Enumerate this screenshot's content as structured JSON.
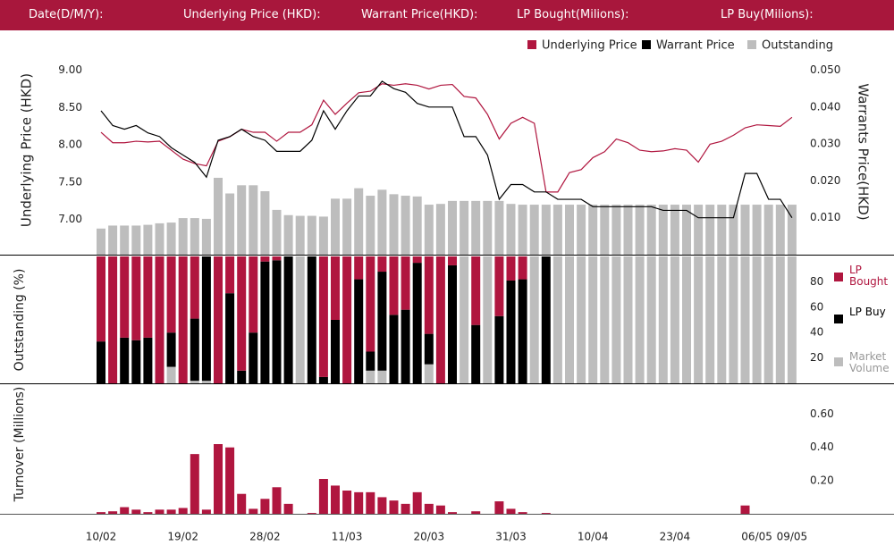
{
  "header": {
    "labels": [
      "Date(D/M/Y):",
      "Underlying Price (HKD):",
      "Warrant  Price(HKD):",
      "LP Bought(Milions):",
      "LP Buy(Milions):"
    ]
  },
  "chart_data": [
    {
      "type": "combo",
      "ylabel": "Underlying Price (HKD)",
      "y2label": "Warrants  Price(HKD)",
      "ylim": [
        6.53,
        9.2
      ],
      "yticks": [
        {
          "value": 7,
          "label": "7.00"
        },
        {
          "value": 7.5,
          "label": "7.50"
        },
        {
          "value": 8,
          "label": "8.00"
        },
        {
          "value": 8.5,
          "label": "8.50"
        },
        {
          "value": 9,
          "label": "9.00"
        }
      ],
      "y2lim": [
        0,
        0.054
      ],
      "y2ticks": [
        {
          "value": 0.01,
          "label": "0.010"
        },
        {
          "value": 0.02,
          "label": "0.020"
        },
        {
          "value": 0.03,
          "label": "0.030"
        },
        {
          "value": 0.04,
          "label": "0.040"
        },
        {
          "value": 0.05,
          "label": "0.050"
        }
      ],
      "series": [
        {
          "name": "Underlying Price",
          "color": "#b0163f",
          "type": "line",
          "values": [
            8.17,
            8.03,
            8.03,
            8.05,
            8.04,
            8.05,
            7.93,
            7.81,
            7.75,
            7.72,
            8.05,
            8.11,
            8.21,
            8.17,
            8.17,
            8.05,
            8.17,
            8.17,
            8.27,
            8.6,
            8.41,
            8.56,
            8.7,
            8.72,
            8.82,
            8.8,
            8.82,
            8.8,
            8.75,
            8.8,
            8.81,
            8.65,
            8.63,
            8.41,
            8.08,
            8.29,
            8.37,
            8.29,
            7.37,
            7.37,
            7.63,
            7.67,
            7.83,
            7.91,
            8.08,
            8.03,
            7.93,
            7.91,
            7.92,
            7.95,
            7.93,
            7.77,
            8.01,
            8.05,
            8.13,
            8.23,
            8.27,
            8.26,
            8.25,
            8.37
          ]
        },
        {
          "name": "Warrant  Price",
          "color": "#000000",
          "type": "line",
          "axis": "y2",
          "values": [
            0.039,
            0.035,
            0.034,
            0.035,
            0.033,
            0.032,
            0.029,
            0.027,
            0.025,
            0.021,
            0.031,
            0.032,
            0.034,
            0.032,
            0.031,
            0.028,
            0.028,
            0.028,
            0.031,
            0.039,
            0.034,
            0.039,
            0.043,
            0.043,
            0.047,
            0.045,
            0.044,
            0.041,
            0.04,
            0.04,
            0.04,
            0.032,
            0.032,
            0.027,
            0.015,
            0.019,
            0.019,
            0.017,
            0.017,
            0.015,
            0.015,
            0.015,
            0.013,
            0.013,
            0.013,
            0.013,
            0.013,
            0.013,
            0.012,
            0.012,
            0.012,
            0.01,
            0.01,
            0.01,
            0.01,
            0.022,
            0.022,
            0.015,
            0.015,
            0.01
          ]
        },
        {
          "name": "Outstanding",
          "color": "#bdbdbd",
          "type": "bar",
          "values": [
            6.88,
            6.92,
            6.92,
            6.92,
            6.93,
            6.95,
            6.96,
            7.02,
            7.02,
            7.01,
            7.56,
            7.35,
            7.46,
            7.46,
            7.38,
            7.13,
            7.06,
            7.05,
            7.05,
            7.04,
            7.28,
            7.28,
            7.42,
            7.32,
            7.4,
            7.34,
            7.32,
            7.31,
            7.2,
            7.21,
            7.25,
            7.25,
            7.25,
            7.25,
            7.25,
            7.21,
            7.2,
            7.2,
            7.2,
            7.2,
            7.2,
            7.2,
            7.2,
            7.2,
            7.2,
            7.2,
            7.2,
            7.2,
            7.2,
            7.2,
            7.2,
            7.2,
            7.2,
            7.2,
            7.2,
            7.2,
            7.2,
            7.2,
            7.2,
            7.2
          ]
        }
      ]
    },
    {
      "type": "stacked_bar",
      "ylabel": "Outstanding (%)",
      "ylim": [
        0,
        100
      ],
      "yticks": [
        20,
        40,
        60,
        80
      ],
      "series": [
        {
          "name": "LP Bought",
          "color": "#b0163f",
          "values": [
            67,
            100,
            64,
            66,
            64,
            100,
            60,
            100,
            49,
            0,
            100,
            29,
            90,
            60,
            4,
            3,
            0,
            0,
            0,
            95,
            50,
            100,
            18,
            75,
            12,
            46,
            42,
            5,
            61,
            100,
            7,
            0,
            54,
            0,
            47,
            19,
            18,
            0,
            0,
            0,
            0,
            0,
            0,
            0,
            0,
            0,
            0,
            0,
            0,
            0,
            0,
            0,
            0,
            0,
            0,
            0,
            0,
            0,
            0,
            0
          ]
        },
        {
          "name": "LP Buy",
          "color": "#000000",
          "values": [
            33,
            0,
            36,
            34,
            36,
            0,
            27,
            0,
            49,
            98,
            0,
            71,
            10,
            40,
            96,
            97,
            100,
            0,
            100,
            5,
            50,
            0,
            82,
            15,
            78,
            54,
            58,
            95,
            24,
            0,
            93,
            0,
            46,
            0,
            53,
            81,
            82,
            0,
            100,
            0,
            0,
            0,
            0,
            0,
            0,
            0,
            0,
            0,
            0,
            0,
            0,
            0,
            0,
            0,
            0,
            0,
            0,
            0,
            0,
            0
          ]
        },
        {
          "name": "Market Volume",
          "color": "#bdbdbd",
          "values": [
            0,
            0,
            0,
            0,
            0,
            0,
            13,
            0,
            2,
            2,
            0,
            0,
            0,
            0,
            0,
            0,
            0,
            100,
            0,
            0,
            0,
            0,
            0,
            10,
            10,
            0,
            0,
            0,
            15,
            0,
            0,
            100,
            0,
            100,
            0,
            0,
            0,
            100,
            0,
            100,
            100,
            100,
            100,
            100,
            100,
            100,
            100,
            100,
            100,
            100,
            100,
            100,
            100,
            100,
            100,
            100,
            100,
            100,
            100,
            100
          ]
        }
      ]
    },
    {
      "type": "bar",
      "ylabel": "Turnover (Millions)",
      "color": "#b0163f",
      "categories": [
        "10/02",
        null,
        null,
        null,
        null,
        null,
        null,
        "19/02",
        null,
        null,
        null,
        null,
        null,
        null,
        "28/02",
        null,
        null,
        null,
        null,
        null,
        null,
        "11/03",
        null,
        null,
        null,
        null,
        null,
        null,
        "20/03",
        null,
        null,
        null,
        null,
        null,
        null,
        "31/03",
        null,
        null,
        null,
        null,
        null,
        null,
        "10/04",
        null,
        null,
        null,
        null,
        null,
        null,
        "23/04",
        null,
        null,
        null,
        null,
        null,
        null,
        "06/05",
        null,
        null,
        "09/05"
      ],
      "ylim": [
        0,
        0.7
      ],
      "yticks": [
        {
          "value": 0.2,
          "label": "0.20"
        },
        {
          "value": 0.4,
          "label": "0.40"
        },
        {
          "value": 0.6,
          "label": "0.60"
        }
      ],
      "values": [
        0.01,
        0.015,
        0.04,
        0.025,
        0.01,
        0.025,
        0.025,
        0.035,
        0.36,
        0.025,
        0.42,
        0.4,
        0.12,
        0.03,
        0.09,
        0.16,
        0.06,
        0,
        0.005,
        0.21,
        0.17,
        0.14,
        0.13,
        0.13,
        0.1,
        0.08,
        0.06,
        0.13,
        0.06,
        0.05,
        0.01,
        0,
        0.015,
        0,
        0.075,
        0.03,
        0.01,
        0,
        0.005,
        0,
        0,
        0,
        0,
        0,
        0,
        0,
        0,
        0,
        0,
        0,
        0,
        0,
        0,
        0,
        0,
        0.05,
        0,
        0,
        0,
        0
      ]
    }
  ]
}
